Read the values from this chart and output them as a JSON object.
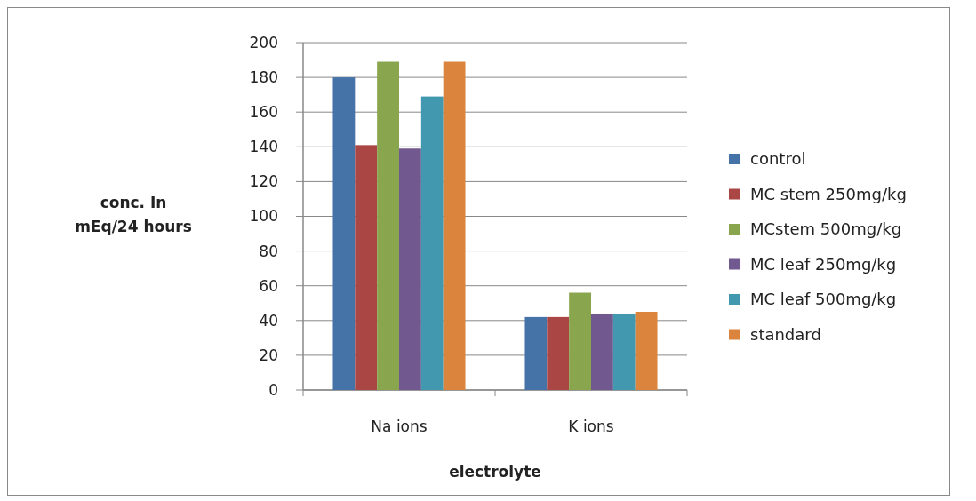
{
  "chart_data": {
    "type": "bar",
    "xlabel": "electrolyte",
    "ylabel": "conc. In mEq/24 hours",
    "categories": [
      "Na ions",
      "K ions"
    ],
    "series": [
      {
        "name": "control",
        "color": "#4572a7",
        "values": [
          180,
          42
        ]
      },
      {
        "name": "MC stem 250mg/kg",
        "color": "#aa4643",
        "values": [
          141,
          42
        ]
      },
      {
        "name": "MCstem 500mg/kg",
        "color": "#89a54e",
        "values": [
          189,
          56
        ]
      },
      {
        "name": "MC leaf 250mg/kg",
        "color": "#71588f",
        "values": [
          139,
          44
        ]
      },
      {
        "name": "MC leaf 500mg/kg",
        "color": "#4198af",
        "values": [
          169,
          44
        ]
      },
      {
        "name": "standard",
        "color": "#db843d",
        "values": [
          189,
          45
        ]
      }
    ],
    "ylim": [
      0,
      200
    ],
    "yticks": [
      0,
      20,
      40,
      60,
      80,
      100,
      120,
      140,
      160,
      180,
      200
    ],
    "grid": "y",
    "legend": "right"
  }
}
